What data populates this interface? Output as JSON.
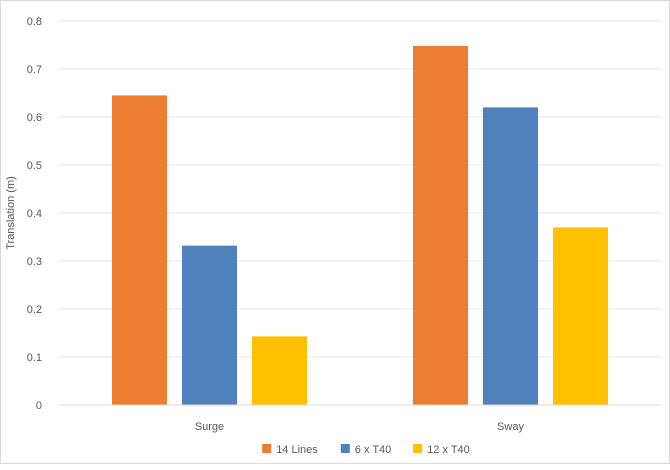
{
  "chart_data": {
    "type": "bar",
    "categories": [
      "Surge",
      "Sway"
    ],
    "series": [
      {
        "name": "14 Lines",
        "color": "#ED7D31",
        "values": [
          0.645,
          0.748
        ]
      },
      {
        "name": "6 x T40",
        "color": "#4F81BD",
        "values": [
          0.332,
          0.62
        ]
      },
      {
        "name": "12 x T40",
        "color": "#FFC000",
        "values": [
          0.143,
          0.37
        ]
      }
    ],
    "title": "",
    "xlabel": "",
    "ylabel": "Translation (m)",
    "ylim": [
      0,
      0.8
    ],
    "ytick_labels": [
      "0",
      "0.1",
      "0.2",
      "0.3",
      "0.4",
      "0.5",
      "0.6",
      "0.7",
      "0.8"
    ],
    "grid": true,
    "legend_position": "bottom"
  }
}
